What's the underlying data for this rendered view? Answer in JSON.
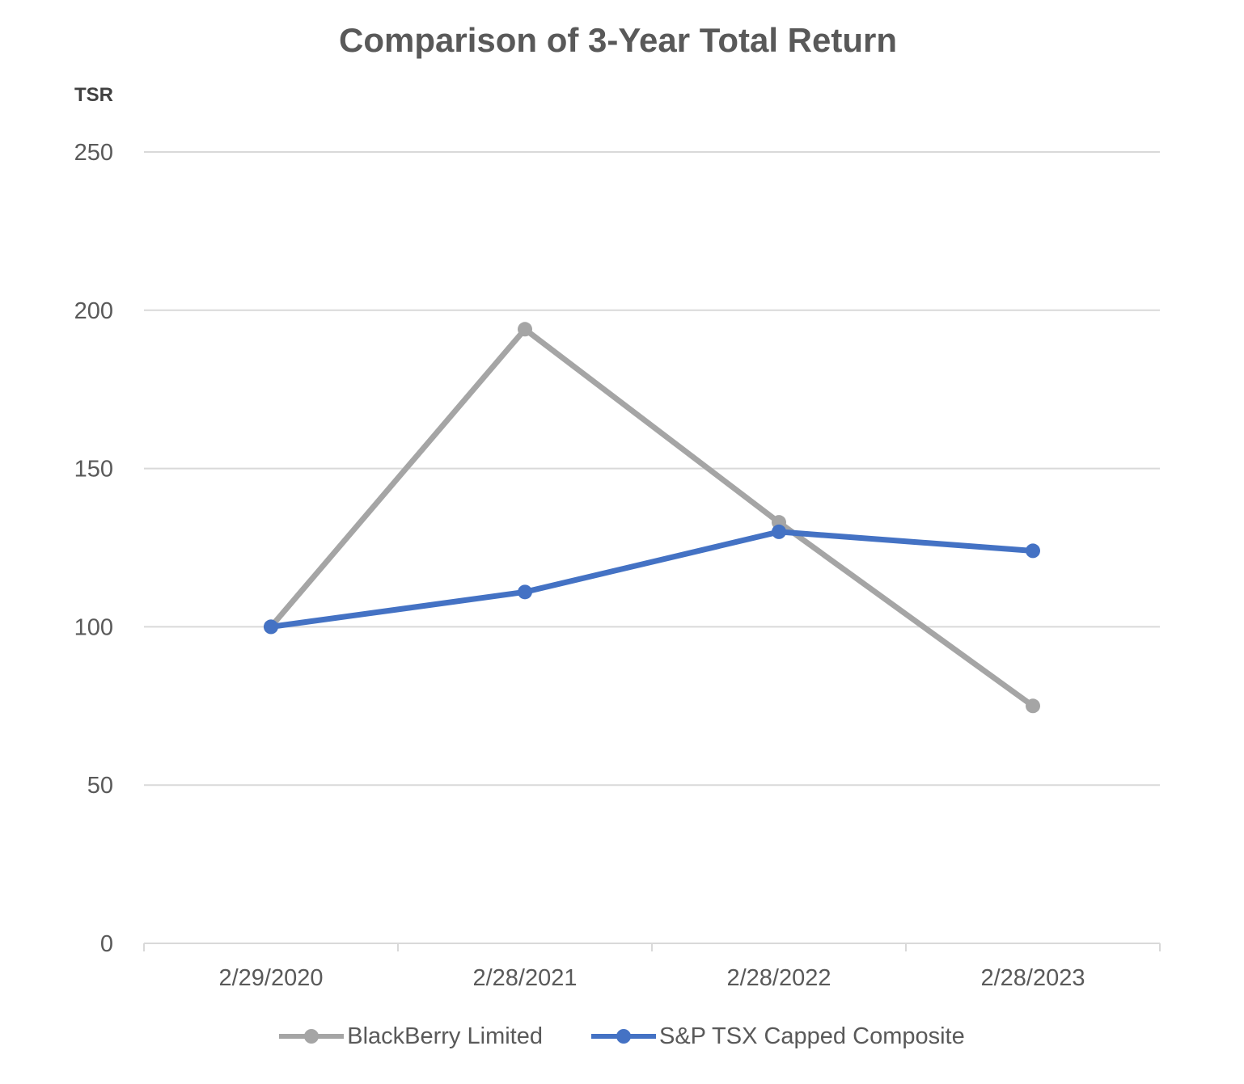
{
  "chart_data": {
    "type": "line",
    "title": "Comparison of 3-Year Total Return",
    "ylabel": "TSR",
    "xlabel": "",
    "categories": [
      "2/29/2020",
      "2/28/2021",
      "2/28/2022",
      "2/28/2023"
    ],
    "ylim": [
      0,
      250
    ],
    "yticks": [
      0,
      50,
      100,
      150,
      200,
      250
    ],
    "grid": true,
    "legend_position": "bottom",
    "series": [
      {
        "name": "BlackBerry Limited",
        "color": "#a5a5a5",
        "values": [
          100,
          194,
          133,
          75
        ]
      },
      {
        "name": "S&P TSX Capped Composite",
        "color": "#4472c4",
        "values": [
          100,
          111,
          130,
          124
        ]
      }
    ]
  }
}
